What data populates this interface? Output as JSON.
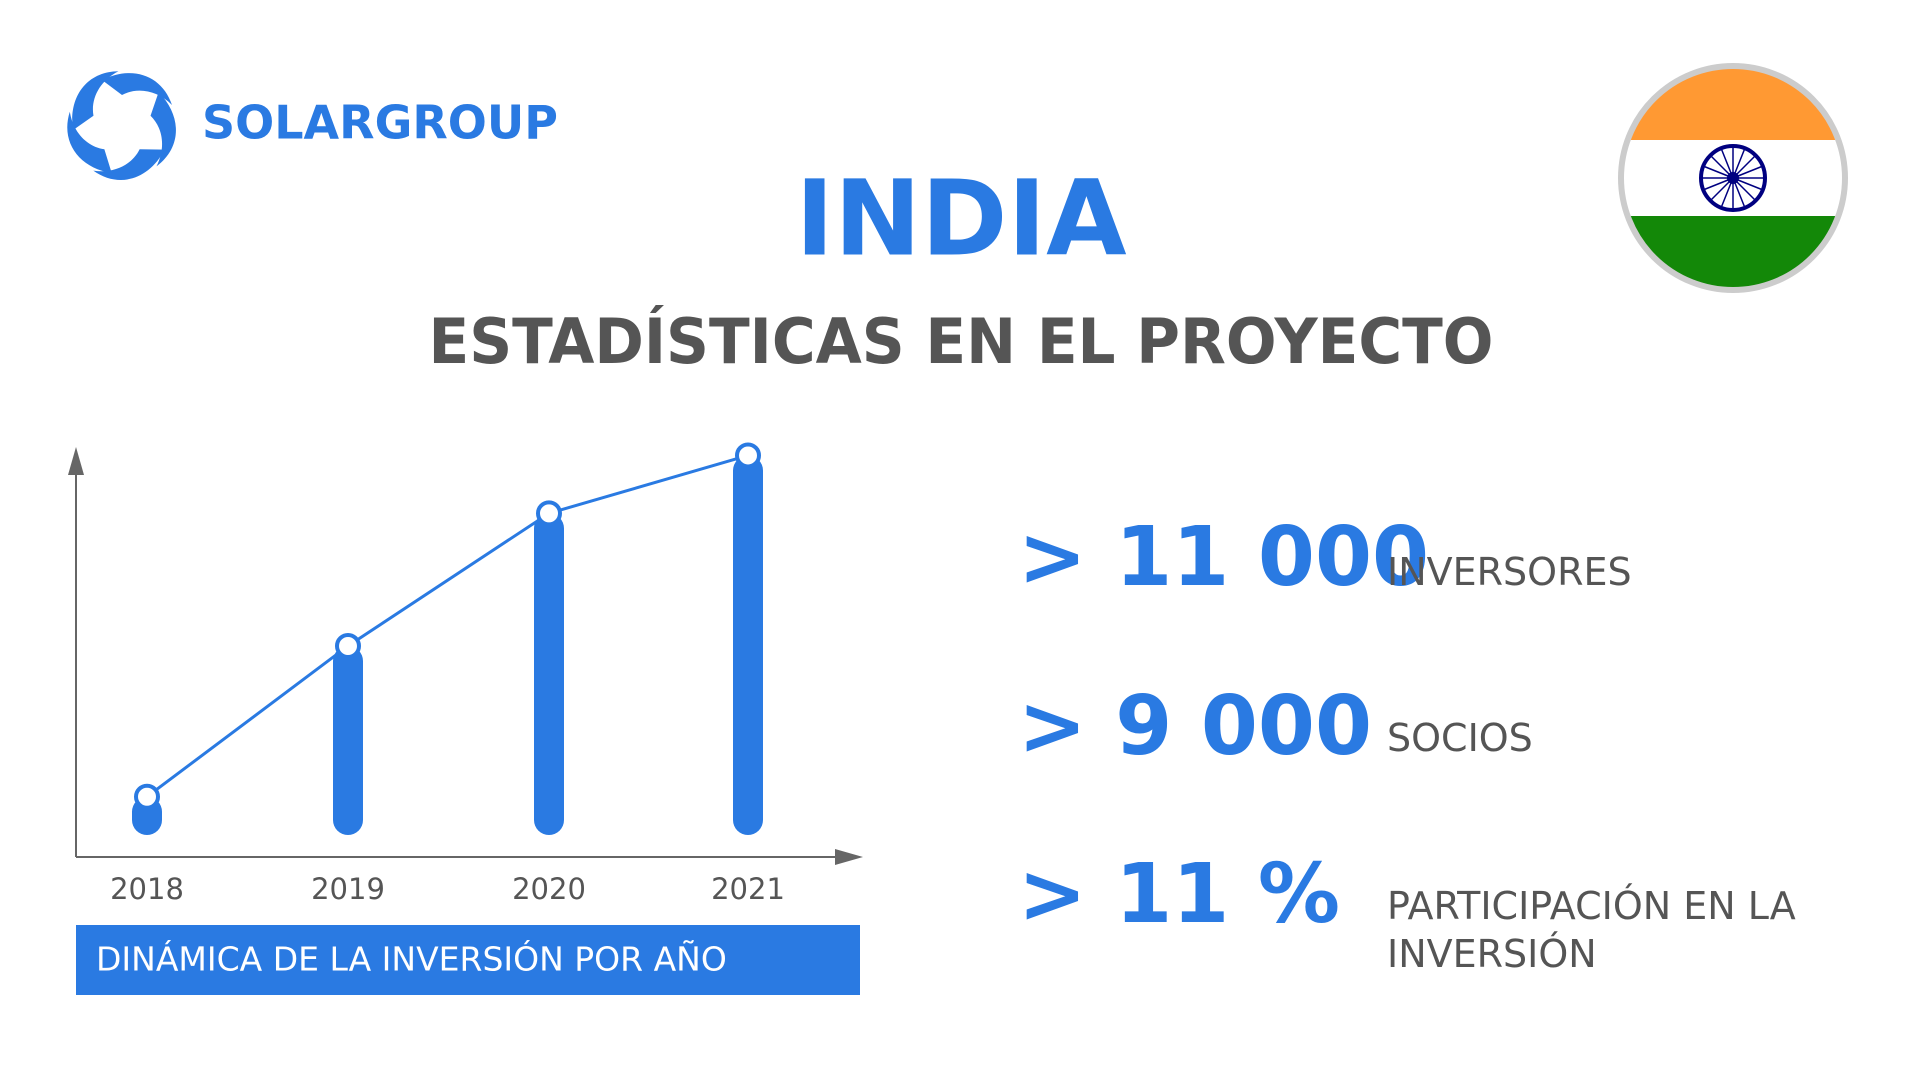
{
  "header": {
    "brand": "SOLARGROUP",
    "title": "INDIA",
    "subtitle": "ESTADÍSTICAS EN EL PROYECTO"
  },
  "chart_data": {
    "type": "bar",
    "categories": [
      "2018",
      "2019",
      "2020",
      "2021"
    ],
    "values": [
      50,
      175,
      285,
      333
    ],
    "ylim": [
      0,
      340
    ],
    "color": "#2a7ae2",
    "caption": "DINÁMICA DE LA INVERSIÓN POR AÑO"
  },
  "stats": [
    {
      "value": "> 11 000",
      "label": "INVERSORES"
    },
    {
      "value": "> 9 000",
      "label": "SOCIOS"
    },
    {
      "value": "> 11 %",
      "label": "PARTICIPACIÓN EN LA INVERSIÓN"
    }
  ]
}
